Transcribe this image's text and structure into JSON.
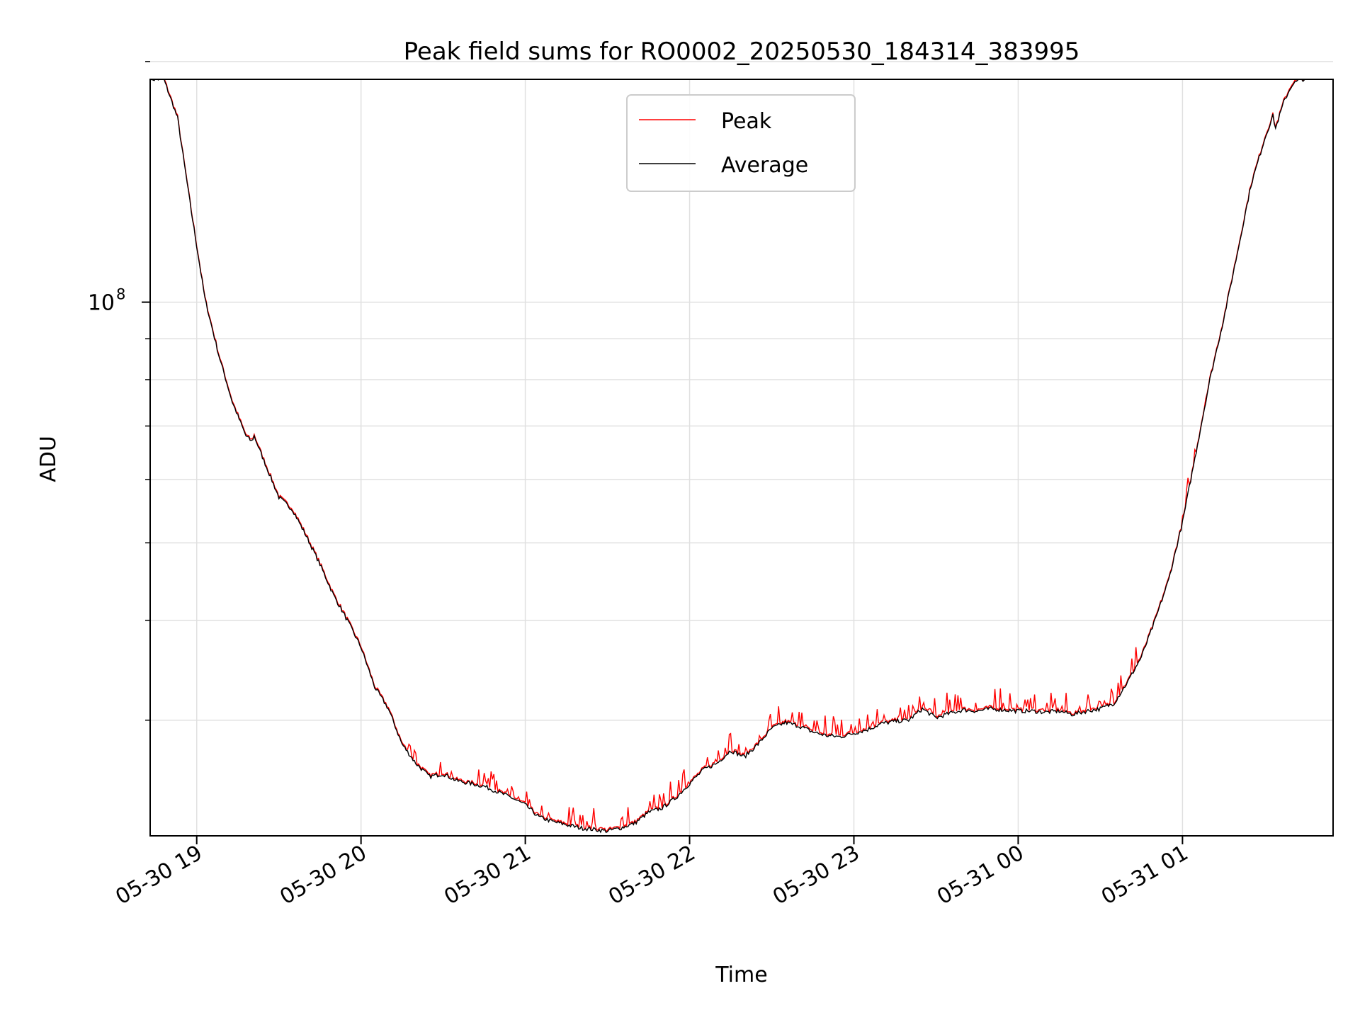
{
  "chart_data": {
    "type": "line",
    "title": "Peak field sums for RO0002_20250530_184314_383995",
    "xlabel": "Time",
    "ylabel": "ADU",
    "x_ticks": [
      "05-30 19",
      "05-30 20",
      "05-30 21",
      "05-30 22",
      "05-30 23",
      "05-31 00",
      "05-31 01"
    ],
    "xlim": [
      "2025-05-30 18:43",
      "2025-05-31 01:55"
    ],
    "y_scale": "log",
    "ylim": [
      21500000,
      190000000
    ],
    "y_major_ticks": [
      {
        "value": 100000000,
        "label_base": "10",
        "label_exp": "8"
      }
    ],
    "y_minor_ticks": [
      30000000,
      40000000,
      50000000,
      60000000,
      70000000,
      80000000,
      90000000,
      200000000
    ],
    "grid": true,
    "legend_position": "upper center",
    "series": [
      {
        "name": "Peak",
        "color": "#ff0000",
        "spike_ranges": [
          [
            "2025-05-30 20:15",
            "2025-05-31 00:48"
          ],
          [
            "2025-05-31 01:00",
            "2025-05-31 01:10"
          ]
        ],
        "spike_max_factor": 1.06
      },
      {
        "name": "Average",
        "color": "#000000",
        "x": [
          "2025-05-30 18:43",
          "2025-05-30 18:48",
          "2025-05-30 18:53",
          "2025-05-30 18:58",
          "2025-05-30 19:03",
          "2025-05-30 19:08",
          "2025-05-30 19:13",
          "2025-05-30 19:18",
          "2025-05-30 19:20",
          "2025-05-30 19:21",
          "2025-05-30 19:24",
          "2025-05-30 19:30",
          "2025-05-30 19:35",
          "2025-05-30 19:40",
          "2025-05-30 19:45",
          "2025-05-30 19:50",
          "2025-05-30 19:55",
          "2025-05-30 20:00",
          "2025-05-30 20:05",
          "2025-05-30 20:10",
          "2025-05-30 20:15",
          "2025-05-30 20:20",
          "2025-05-30 20:25",
          "2025-05-30 20:30",
          "2025-05-30 20:35",
          "2025-05-30 20:40",
          "2025-05-30 20:45",
          "2025-05-30 20:50",
          "2025-05-30 20:55",
          "2025-05-30 21:00",
          "2025-05-30 21:05",
          "2025-05-30 21:10",
          "2025-05-30 21:15",
          "2025-05-30 21:20",
          "2025-05-30 21:25",
          "2025-05-30 21:30",
          "2025-05-30 21:35",
          "2025-05-30 21:40",
          "2025-05-30 21:45",
          "2025-05-30 21:50",
          "2025-05-30 21:55",
          "2025-05-30 22:00",
          "2025-05-30 22:05",
          "2025-05-30 22:10",
          "2025-05-30 22:15",
          "2025-05-30 22:20",
          "2025-05-30 22:25",
          "2025-05-30 22:30",
          "2025-05-30 22:35",
          "2025-05-30 22:40",
          "2025-05-30 22:45",
          "2025-05-30 22:50",
          "2025-05-30 22:55",
          "2025-05-30 23:00",
          "2025-05-30 23:05",
          "2025-05-30 23:10",
          "2025-05-30 23:15",
          "2025-05-30 23:20",
          "2025-05-30 23:25",
          "2025-05-30 23:30",
          "2025-05-30 23:35",
          "2025-05-30 23:40",
          "2025-05-30 23:45",
          "2025-05-30 23:50",
          "2025-05-30 23:55",
          "2025-05-31 00:00",
          "2025-05-31 00:05",
          "2025-05-31 00:10",
          "2025-05-31 00:15",
          "2025-05-31 00:20",
          "2025-05-31 00:25",
          "2025-05-31 00:30",
          "2025-05-31 00:35",
          "2025-05-31 00:40",
          "2025-05-31 00:45",
          "2025-05-31 00:50",
          "2025-05-31 00:55",
          "2025-05-31 01:00",
          "2025-05-31 01:05",
          "2025-05-31 01:10",
          "2025-05-31 01:15",
          "2025-05-31 01:20",
          "2025-05-31 01:25",
          "2025-05-31 01:30",
          "2025-05-31 01:33",
          "2025-05-31 01:34",
          "2025-05-31 01:37",
          "2025-05-31 01:40",
          "2025-05-31 01:43",
          "2025-05-31 01:46"
        ],
        "y": [
          190000000,
          190000000,
          170000000,
          130000000,
          101000000,
          86000000,
          75000000,
          68000000,
          67000000,
          68000000,
          64000000,
          57000000,
          55000000,
          51000000,
          47000000,
          43000000,
          40000000,
          37000000,
          33000000,
          31000000,
          28000000,
          26500000,
          25500000,
          25700000,
          25200000,
          25000000,
          24800000,
          24400000,
          24000000,
          23500000,
          22700000,
          22400000,
          22200000,
          22000000,
          21900000,
          21800000,
          22000000,
          22300000,
          23000000,
          23300000,
          24000000,
          25000000,
          26000000,
          26500000,
          27500000,
          27000000,
          28000000,
          29300000,
          29800000,
          29500000,
          29000000,
          28700000,
          28600000,
          28900000,
          29200000,
          29700000,
          29900000,
          30000000,
          31000000,
          30200000,
          30600000,
          30900000,
          30800000,
          31000000,
          30900000,
          30800000,
          30800000,
          30700000,
          30800000,
          30500000,
          30800000,
          31000000,
          31500000,
          33500000,
          36000000,
          40000000,
          45000000,
          53000000,
          65000000,
          80000000,
          95000000,
          115000000,
          140000000,
          160000000,
          171000000,
          165000000,
          178000000,
          187000000,
          190000000,
          190000000
        ]
      }
    ]
  }
}
